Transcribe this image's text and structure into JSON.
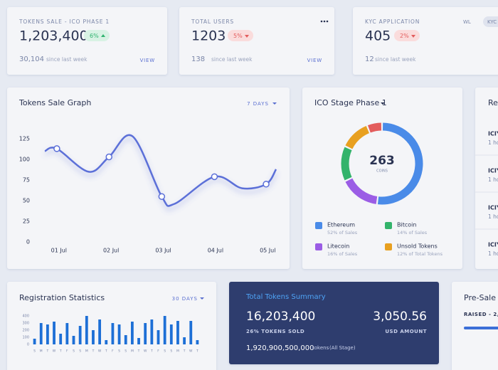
{
  "cards": [
    {
      "label": "TOKENS SALE - ICO PHASE 1",
      "value": "1,203,400",
      "change": "6%",
      "trend": "up",
      "count": "30,104",
      "count_note": "since last week",
      "link": "VIEW"
    },
    {
      "label": "TOTAL USERS",
      "value": "1203",
      "change": "5%",
      "trend": "down",
      "count": "138",
      "count_note": "since last week",
      "link": "VIEW"
    },
    {
      "label": "KYC APPLICATION",
      "value": "405",
      "change": "2%",
      "trend": "down",
      "count": "12",
      "count_note": "since last week",
      "tabs": [
        "WL",
        "KYC"
      ]
    }
  ],
  "chart_data": [
    {
      "type": "line",
      "title": "Tokens Sale Graph",
      "range": "7 DAYS",
      "x": [
        0.73,
        0.96,
        1.57,
        1.96,
        2.41,
        2.97,
        3.21,
        3.98,
        4.51,
        4.97,
        5.16
      ],
      "values": [
        110,
        113,
        85,
        103,
        128,
        55,
        46,
        79,
        65,
        70,
        88
      ],
      "xlim": [
        0.73,
        5.16
      ],
      "xticks": [
        {
          "value": 1,
          "label": "01 Jul"
        },
        {
          "value": 2,
          "label": "02 Jul"
        },
        {
          "value": 3,
          "label": "03 Jul"
        },
        {
          "value": 4,
          "label": "04 Jul"
        },
        {
          "value": 5,
          "label": "05 Jul"
        }
      ],
      "ylim": [
        0,
        135
      ],
      "yticks": [
        0,
        25,
        50,
        75,
        100,
        125
      ],
      "grid": false,
      "color": "#5b6fd8"
    },
    {
      "type": "donut",
      "title": "ICO Stage Phase 1",
      "center_value": "263",
      "center_label": "COINS",
      "categories": [
        "Ethereum",
        "Litecoin",
        "Bitcoin",
        "Unsold Tokens",
        null
      ],
      "values": [
        52,
        16,
        14,
        12,
        6
      ],
      "value_labels": [
        "52% of Sales",
        "16% of Sales",
        "14% of Sales",
        "12% of Total Tokens",
        null
      ],
      "colors": [
        "#4a8be8",
        "#9b5de5",
        "#33b36b",
        "#e8a020",
        "#e35d5d"
      ]
    },
    {
      "type": "bar",
      "title": "Registration Statistics",
      "range": "30 DAYS",
      "categories": [
        "S",
        "M",
        "T",
        "W",
        "T",
        "F",
        "S",
        "S",
        "M",
        "T",
        "W",
        "T",
        "F",
        "S",
        "S",
        "M",
        "T",
        "W",
        "T",
        "F",
        "S",
        "S",
        "M",
        "T",
        "W",
        "T"
      ],
      "values": [
        80,
        300,
        280,
        320,
        150,
        300,
        120,
        260,
        400,
        200,
        350,
        60,
        300,
        280,
        130,
        320,
        90,
        300,
        350,
        200,
        400,
        280,
        330,
        100,
        330,
        60
      ],
      "ylim": [
        0,
        400
      ],
      "yticks": [
        0,
        100,
        200,
        300,
        400
      ],
      "color": "#1d6fd6"
    }
  ],
  "summary": {
    "title": "Total Tokens Summary",
    "sold": "16,203,400",
    "sold_label": "26% TOKENS SOLD",
    "usd": "3,050.56",
    "usd_label": "USD AMOUNT",
    "tokens": "1,920,900,500,000",
    "tokens_unit": "tokens",
    "tokens_note": "(All Stage)"
  },
  "presale": {
    "title": "Pre-Sale T",
    "raised": "RAISED - 2,"
  },
  "recent": {
    "title": "Re",
    "items": [
      {
        "name": "ICIY",
        "time": "1 ho"
      },
      {
        "name": "ICIY",
        "time": "1 ho"
      },
      {
        "name": "ICIY",
        "time": "1 ho"
      },
      {
        "name": "ICIY",
        "time": "1 ho"
      }
    ]
  }
}
